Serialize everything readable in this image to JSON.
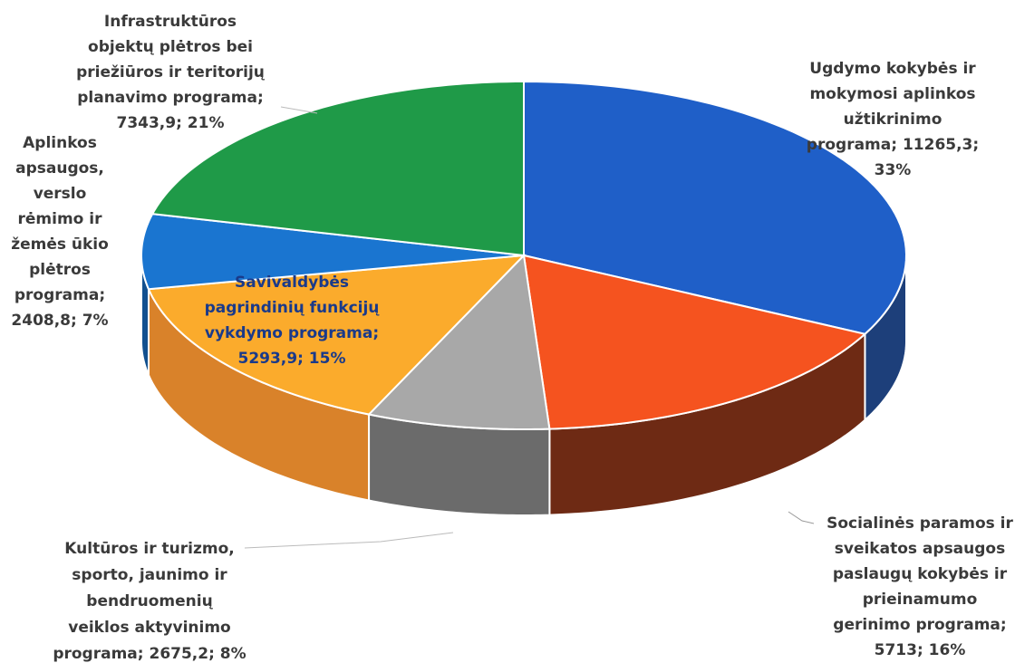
{
  "chart_data": {
    "type": "pie",
    "values": [
      11265.3,
      5713,
      2675.2,
      5293.9,
      2408.8,
      7343.9
    ],
    "value_labels": [
      [
        "Ugdymo kokybės ir",
        "mokymosi aplinkos",
        "užtikrinimo",
        "programa; 11265,3;",
        "33%"
      ],
      [
        "Socialinės paramos ir",
        "sveikatos apsaugos",
        "paslaugų kokybės ir",
        "prieinamumo",
        "gerinimo programa;",
        "5713; 16%"
      ],
      [
        "Kultūros ir turizmo,",
        "sporto, jaunimo ir",
        "bendruomenių",
        "veiklos aktyvinimo",
        "programa; 2675,2; 8%"
      ],
      [
        "Savivaldybės",
        "pagrindinių funkcijų",
        "vykdymo programa;",
        "5293,9; 15%"
      ],
      [
        "Aplinkos",
        "apsaugos,",
        "verslo",
        "rėmimo ir",
        "žemės ūkio",
        "plėtros",
        "programa;",
        "2408,8; 7%"
      ],
      [
        "Infrastruktūros",
        "objektų plėtros bei",
        "priežiūros ir teritorijų",
        "planavimo programa;",
        "7343,9; 21%"
      ]
    ],
    "colors": [
      "#1f5fc8",
      "#f5531f",
      "#a8a8a8",
      "#fbab2c",
      "#1a75d0",
      "#1f9a48"
    ],
    "side_colors": [
      "#1d3f7a",
      "#6e2a14",
      "#6b6b6b",
      "#d9822a",
      "#12508f",
      "#146632"
    ]
  }
}
